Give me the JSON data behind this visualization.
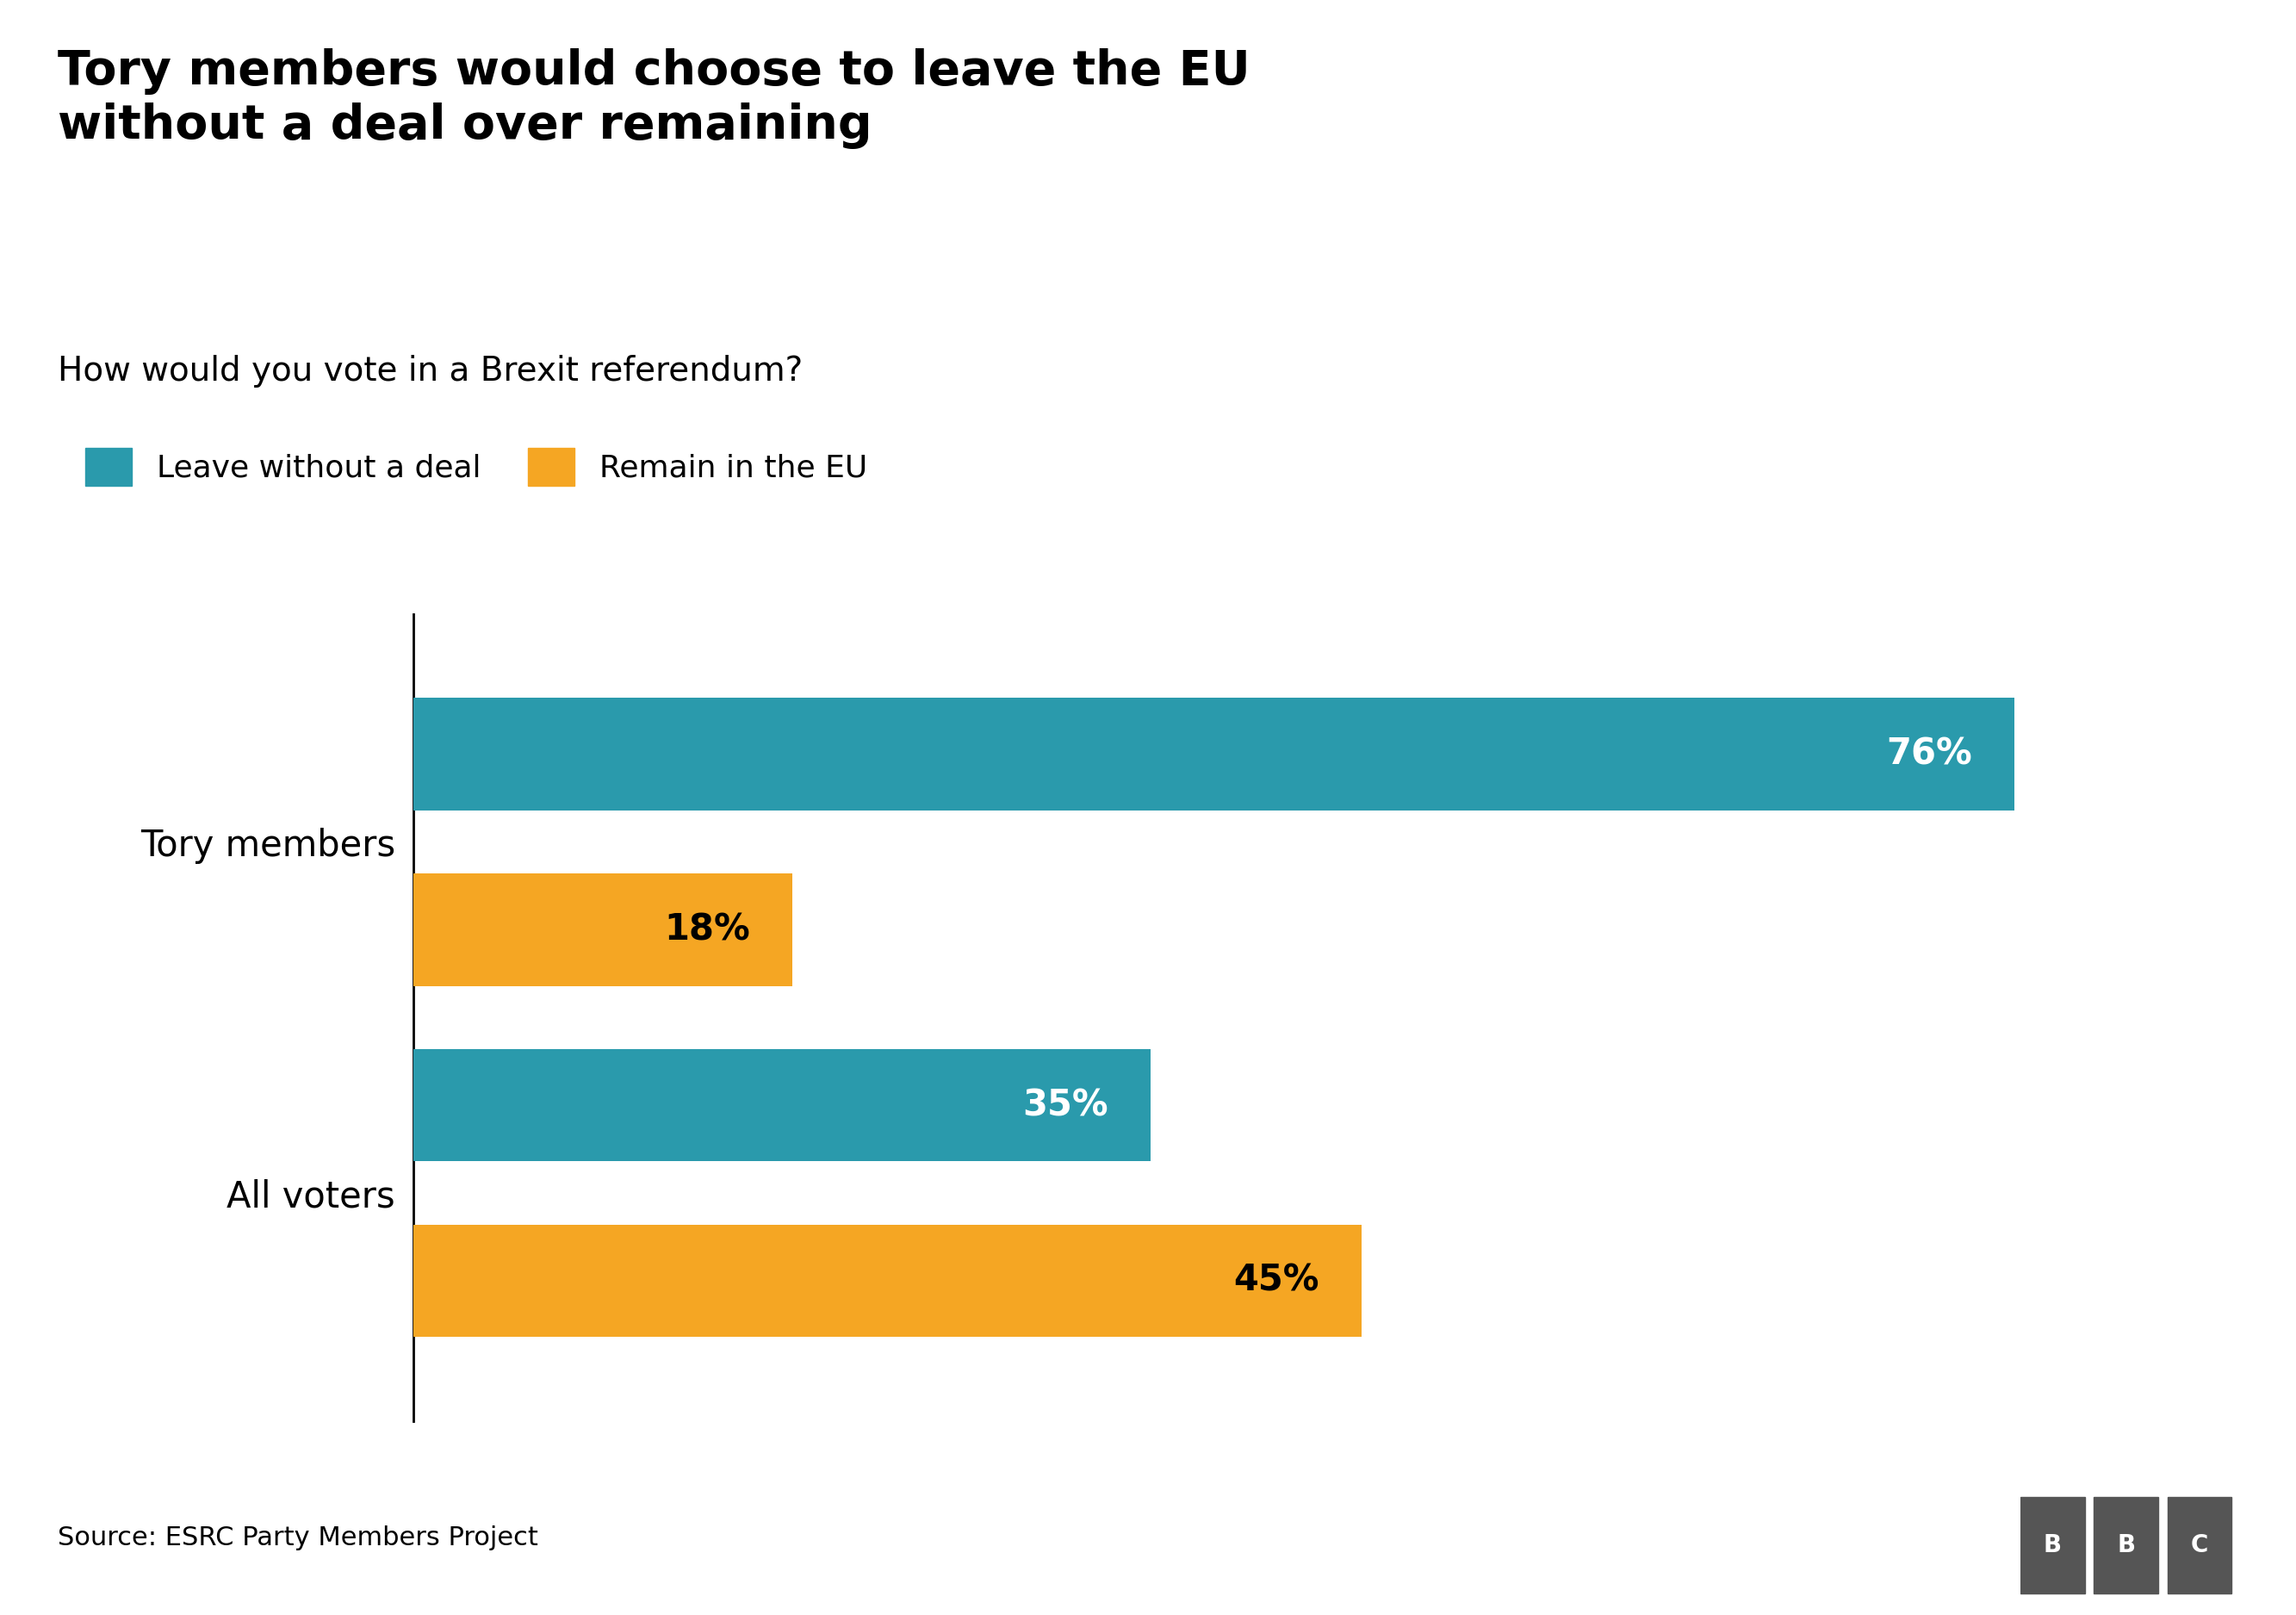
{
  "title": "Tory members would choose to leave the EU\nwithout a deal over remaining",
  "subtitle": "How would you vote in a Brexit referendum?",
  "categories": [
    "Tory members",
    "All voters"
  ],
  "leave_values": [
    76,
    35
  ],
  "remain_values": [
    18,
    45
  ],
  "leave_color": "#2a9aac",
  "remain_color": "#f5a623",
  "leave_label": "Leave without a deal",
  "remain_label": "Remain in the EU",
  "source": "Source: ESRC Party Members Project",
  "background_color": "#ffffff",
  "title_fontsize": 40,
  "subtitle_fontsize": 28,
  "label_fontsize": 30,
  "bar_label_fontsize": 30,
  "legend_fontsize": 26,
  "source_fontsize": 22,
  "xlim": [
    0,
    85
  ]
}
